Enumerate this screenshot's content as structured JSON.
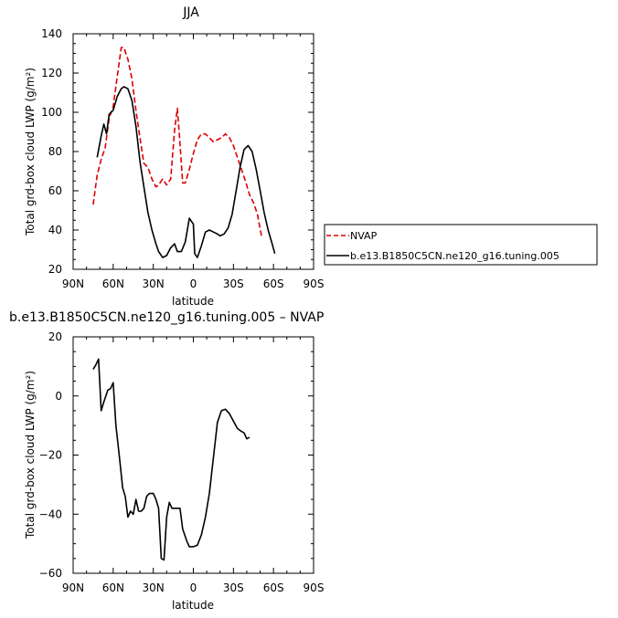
{
  "chart_data": [
    {
      "type": "line",
      "title": "JJA",
      "xlabel": "latitude",
      "ylabel": "Total grd-box cloud LWP (g/m²)",
      "xlim": [
        90,
        -90
      ],
      "ylim": [
        20,
        140
      ],
      "x_ticks": [
        90,
        60,
        30,
        0,
        -30,
        -60,
        -90
      ],
      "x_tick_labels": [
        "90N",
        "60N",
        "30N",
        "0",
        "30S",
        "60S",
        "90S"
      ],
      "y_ticks": [
        20,
        40,
        60,
        80,
        100,
        120,
        140
      ],
      "y_tick_labels": [
        "20",
        "40",
        "60",
        "80",
        "100",
        "120",
        "140"
      ],
      "legend": {
        "placement": "right",
        "entries": [
          "NVAP",
          "b.e13.B1850C5CN.ne120_g16.tuning.005"
        ]
      },
      "series": [
        {
          "name": "NVAP",
          "color": "#dd0000",
          "dash": true,
          "points": [
            [
              75,
              53
            ],
            [
              72,
              68
            ],
            [
              69,
              76
            ],
            [
              66,
              82
            ],
            [
              63,
              97
            ],
            [
              60,
              103
            ],
            [
              57,
              118
            ],
            [
              54,
              133
            ],
            [
              52,
              133
            ],
            [
              49,
              127
            ],
            [
              46,
              117
            ],
            [
              43,
              101
            ],
            [
              40,
              87
            ],
            [
              37,
              74
            ],
            [
              34,
              72
            ],
            [
              31,
              66
            ],
            [
              28,
              62
            ],
            [
              26,
              63
            ],
            [
              23,
              66
            ],
            [
              20,
              63
            ],
            [
              17,
              66
            ],
            [
              14,
              91
            ],
            [
              12,
              102
            ],
            [
              10,
              84
            ],
            [
              8,
              64
            ],
            [
              6,
              64
            ],
            [
              3,
              71
            ],
            [
              0,
              79
            ],
            [
              -3,
              86
            ],
            [
              -6,
              89
            ],
            [
              -9,
              89
            ],
            [
              -12,
              87
            ],
            [
              -15,
              85
            ],
            [
              -18,
              86
            ],
            [
              -21,
              87
            ],
            [
              -24,
              89
            ],
            [
              -27,
              87
            ],
            [
              -30,
              83
            ],
            [
              -33,
              77
            ],
            [
              -36,
              71
            ],
            [
              -39,
              65
            ],
            [
              -42,
              58
            ],
            [
              -45,
              54
            ],
            [
              -48,
              48
            ],
            [
              -51,
              37
            ]
          ]
        },
        {
          "name": "b.e13.B1850C5CN.ne120_g16.tuning.005",
          "color": "#000000",
          "dash": false,
          "points": [
            [
              72,
              77
            ],
            [
              69,
              88
            ],
            [
              67,
              94
            ],
            [
              65,
              89
            ],
            [
              63,
              99
            ],
            [
              60,
              101
            ],
            [
              57,
              108
            ],
            [
              54,
              112
            ],
            [
              52,
              113
            ],
            [
              49,
              112
            ],
            [
              46,
              106
            ],
            [
              43,
              93
            ],
            [
              40,
              75
            ],
            [
              37,
              62
            ],
            [
              34,
              49
            ],
            [
              31,
              40
            ],
            [
              28,
              33
            ],
            [
              26,
              29
            ],
            [
              23,
              26
            ],
            [
              20,
              27
            ],
            [
              17,
              31
            ],
            [
              14,
              33
            ],
            [
              12,
              29
            ],
            [
              9,
              29
            ],
            [
              6,
              34
            ],
            [
              3,
              46
            ],
            [
              0,
              43
            ],
            [
              -1,
              28
            ],
            [
              -3,
              26
            ],
            [
              -6,
              32
            ],
            [
              -9,
              39
            ],
            [
              -12,
              40
            ],
            [
              -15,
              39
            ],
            [
              -18,
              38
            ],
            [
              -20,
              37
            ],
            [
              -23,
              38
            ],
            [
              -26,
              41
            ],
            [
              -29,
              48
            ],
            [
              -32,
              60
            ],
            [
              -35,
              72
            ],
            [
              -38,
              81
            ],
            [
              -41,
              83
            ],
            [
              -44,
              80
            ],
            [
              -47,
              71
            ],
            [
              -50,
              60
            ],
            [
              -53,
              49
            ],
            [
              -56,
              40
            ],
            [
              -59,
              33
            ],
            [
              -61,
              28
            ]
          ]
        }
      ]
    },
    {
      "type": "line",
      "title": "b.e13.B1850C5CN.ne120_g16.tuning.005 – NVAP",
      "xlabel": "latitude",
      "ylabel": "Total grd-box cloud LWP (g/m²)",
      "xlim": [
        90,
        -90
      ],
      "ylim": [
        -60,
        20
      ],
      "x_ticks": [
        90,
        60,
        30,
        0,
        -30,
        -60,
        -90
      ],
      "x_tick_labels": [
        "90N",
        "60N",
        "30N",
        "0",
        "30S",
        "60S",
        "90S"
      ],
      "y_ticks": [
        -60,
        -40,
        -20,
        0,
        20
      ],
      "y_tick_labels": [
        "−60",
        "−40",
        "−20",
        "0",
        "20"
      ],
      "series": [
        {
          "color": "#000000",
          "dash": false,
          "points": [
            [
              75,
              9
            ],
            [
              73,
              10.5
            ],
            [
              71,
              12.5
            ],
            [
              69,
              -5
            ],
            [
              67,
              -2
            ],
            [
              64,
              2
            ],
            [
              62,
              2.5
            ],
            [
              60,
              4.5
            ],
            [
              58,
              -10
            ],
            [
              55,
              -22
            ],
            [
              53,
              -31
            ],
            [
              51,
              -34
            ],
            [
              49,
              -41
            ],
            [
              47,
              -39
            ],
            [
              45,
              -40
            ],
            [
              43,
              -35
            ],
            [
              41,
              -39
            ],
            [
              39,
              -39
            ],
            [
              37,
              -38
            ],
            [
              35,
              -34
            ],
            [
              33,
              -33
            ],
            [
              30,
              -33
            ],
            [
              28,
              -35
            ],
            [
              26,
              -38
            ],
            [
              24,
              -55
            ],
            [
              22,
              -55.5
            ],
            [
              20,
              -41
            ],
            [
              18,
              -36
            ],
            [
              16,
              -38
            ],
            [
              13,
              -38
            ],
            [
              10,
              -38
            ],
            [
              8,
              -45
            ],
            [
              5,
              -49
            ],
            [
              3,
              -51
            ],
            [
              0,
              -51
            ],
            [
              -3,
              -50.5
            ],
            [
              -6,
              -47
            ],
            [
              -9,
              -41
            ],
            [
              -12,
              -33
            ],
            [
              -15,
              -21
            ],
            [
              -18,
              -9
            ],
            [
              -21,
              -5
            ],
            [
              -24,
              -4.5
            ],
            [
              -27,
              -6
            ],
            [
              -30,
              -8.5
            ],
            [
              -33,
              -11
            ],
            [
              -36,
              -12
            ],
            [
              -38,
              -12.5
            ],
            [
              -40,
              -14.5
            ],
            [
              -42,
              -14
            ]
          ]
        }
      ]
    }
  ]
}
